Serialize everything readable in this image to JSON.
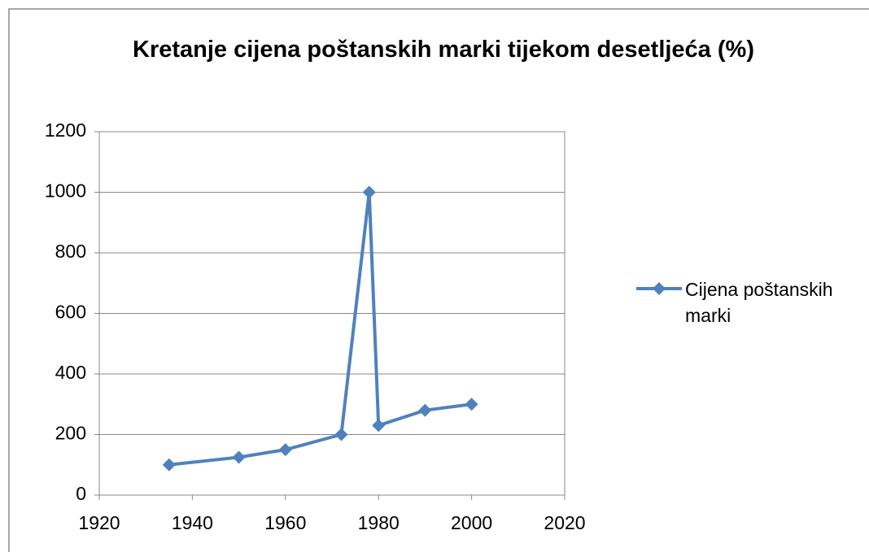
{
  "chart_data": {
    "type": "line",
    "title": "Kretanje cijena poštanskih marki tijekom desetljeća (%)",
    "x": [
      1935,
      1950,
      1960,
      1972,
      1978,
      1980,
      1990,
      2000
    ],
    "series": [
      {
        "name": "Cijena poštanskih marki",
        "color": "#4f81bd",
        "values": [
          100,
          125,
          150,
          200,
          1000,
          230,
          280,
          300
        ]
      }
    ],
    "xlim": [
      1920,
      2020
    ],
    "xticks": [
      1920,
      1940,
      1960,
      1980,
      2000,
      2020
    ],
    "ylim": [
      0,
      1200
    ],
    "yticks": [
      0,
      200,
      400,
      600,
      800,
      1000,
      1200
    ],
    "grid": true,
    "legend": "right"
  }
}
